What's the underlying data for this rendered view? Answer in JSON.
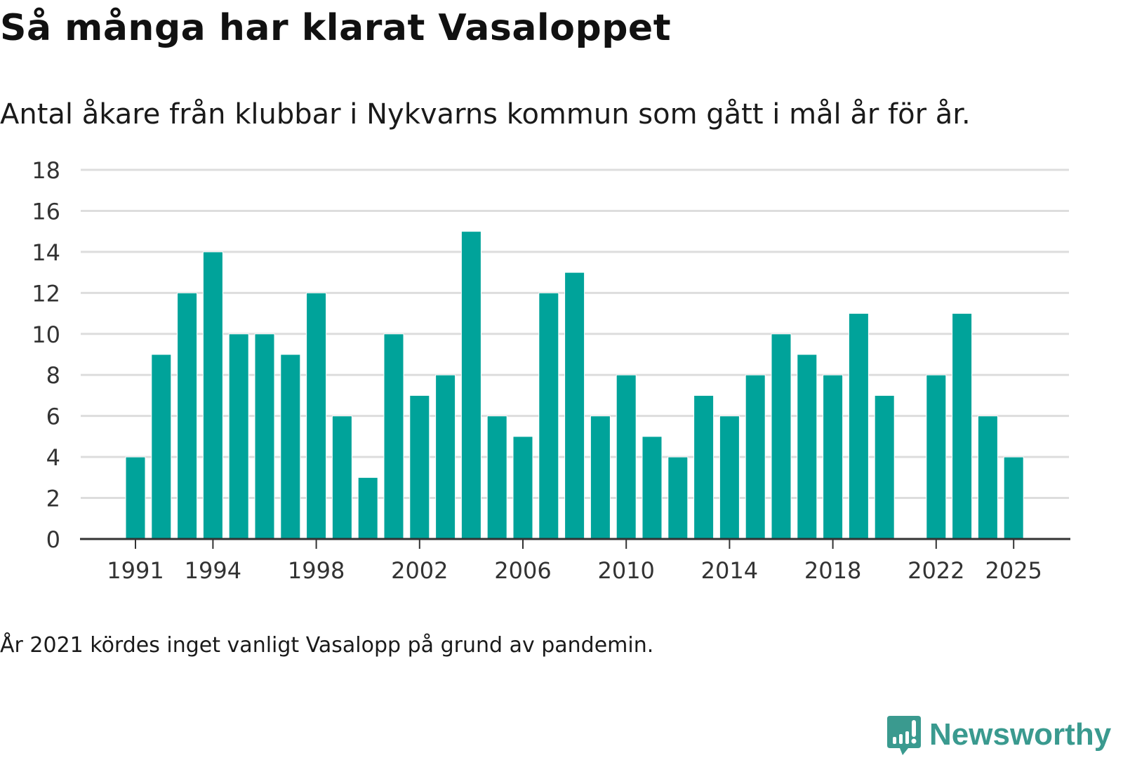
{
  "title": "Så många har klarat Vasaloppet",
  "subtitle": "Antal åkare från klubbar i Nykvarns kommun som gått i mål år för år.",
  "note": "År 2021 kördes inget vanligt Vasalopp på grund av pandemin.",
  "logo": {
    "text": "Newsworthy"
  },
  "colors": {
    "bar": "#00a39a",
    "grid": "#dddddd",
    "axis": "#333333",
    "logo": "#3a9a8f"
  },
  "chart_data": {
    "type": "bar",
    "title": "Så många har klarat Vasaloppet",
    "xlabel": "",
    "ylabel": "",
    "ylim": [
      0,
      18
    ],
    "yticks": [
      "0",
      "2",
      "4",
      "6",
      "8",
      "10",
      "12",
      "14",
      "16",
      "18"
    ],
    "xticks": [
      "1991",
      "1994",
      "1998",
      "2002",
      "2006",
      "2010",
      "2014",
      "2018",
      "2022",
      "2025"
    ],
    "grid": true,
    "categories": [
      1991,
      1992,
      1993,
      1994,
      1995,
      1996,
      1997,
      1998,
      1999,
      2000,
      2001,
      2002,
      2003,
      2004,
      2005,
      2006,
      2007,
      2008,
      2009,
      2010,
      2011,
      2012,
      2013,
      2014,
      2015,
      2016,
      2017,
      2018,
      2019,
      2020,
      2021,
      2022,
      2023,
      2024,
      2025
    ],
    "values": [
      4,
      9,
      12,
      14,
      10,
      10,
      9,
      12,
      6,
      3,
      10,
      7,
      8,
      15,
      6,
      5,
      12,
      13,
      6,
      8,
      5,
      4,
      7,
      6,
      8,
      10,
      9,
      8,
      11,
      7,
      null,
      8,
      11,
      6,
      4
    ]
  }
}
